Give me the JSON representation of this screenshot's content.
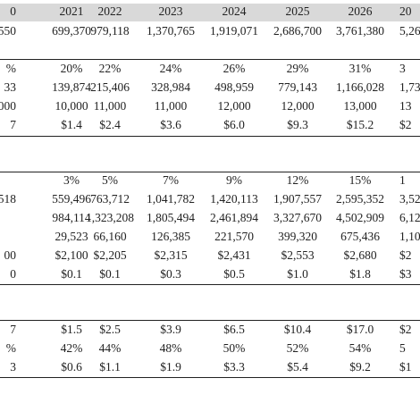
{
  "table": {
    "header": [
      "0",
      "2021",
      "2022",
      "2023",
      "2024",
      "2025",
      "2026",
      "20"
    ],
    "groups": [
      {
        "rows": [
          [
            "550",
            "699,370",
            "979,118",
            "1,370,765",
            "1,919,071",
            "2,686,700",
            "3,761,380",
            "5,26"
          ]
        ]
      },
      {
        "rows": [
          [
            "%",
            "20%",
            "22%",
            "24%",
            "26%",
            "29%",
            "31%",
            "3"
          ],
          [
            "33",
            "139,874",
            "215,406",
            "328,984",
            "498,959",
            "779,143",
            "1,166,028",
            "1,73"
          ],
          [
            "000",
            "10,000",
            "11,000",
            "11,000",
            "12,000",
            "12,000",
            "13,000",
            "13"
          ],
          [
            "7",
            "$1.4",
            "$2.4",
            "$3.6",
            "$6.0",
            "$9.3",
            "$15.2",
            "$2"
          ]
        ]
      },
      {
        "rows": [
          [
            null,
            "3%",
            "5%",
            "7%",
            "9%",
            "12%",
            "15%",
            "1"
          ],
          [
            "518",
            "559,496",
            "763,712",
            "1,041,782",
            "1,420,113",
            "1,907,557",
            "2,595,352",
            "3,52"
          ],
          [
            null,
            "984,114",
            "1,323,208",
            "1,805,494",
            "2,461,894",
            "3,327,670",
            "4,502,909",
            "6,12"
          ],
          [
            null,
            "29,523",
            "66,160",
            "126,385",
            "221,570",
            "399,320",
            "675,436",
            "1,10"
          ],
          [
            "00",
            "$2,100",
            "$2,205",
            "$2,315",
            "$2,431",
            "$2,553",
            "$2,680",
            "$2"
          ],
          [
            "0",
            "$0.1",
            "$0.1",
            "$0.3",
            "$0.5",
            "$1.0",
            "$1.8",
            "$3"
          ]
        ]
      },
      {
        "rows": [
          [
            "7",
            "$1.5",
            "$2.5",
            "$3.9",
            "$6.5",
            "$10.4",
            "$17.0",
            "$2"
          ],
          [
            "%",
            "42%",
            "44%",
            "48%",
            "50%",
            "52%",
            "54%",
            "5"
          ],
          [
            "3",
            "$0.6",
            "$1.1",
            "$1.9",
            "$3.3",
            "$5.4",
            "$9.2",
            "$1"
          ]
        ]
      }
    ]
  }
}
